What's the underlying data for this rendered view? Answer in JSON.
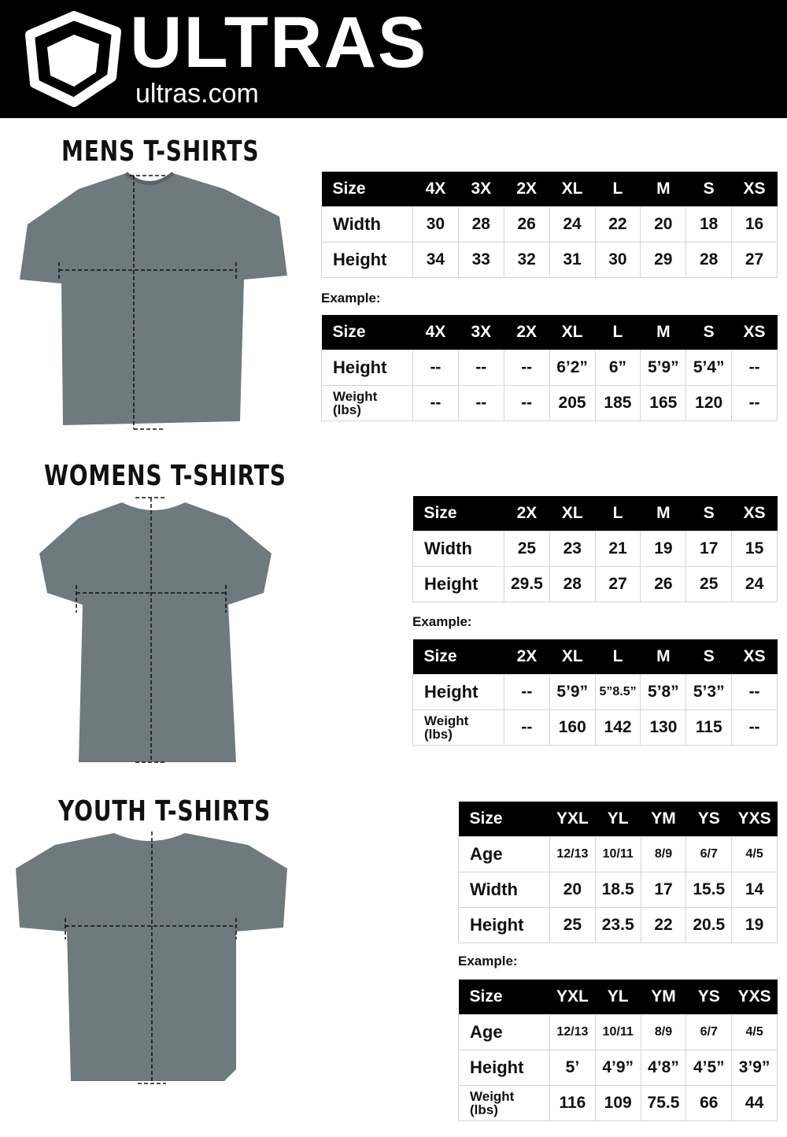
{
  "brand": {
    "name": "ULTRAS",
    "url": "ultras.com"
  },
  "example_label": "Example:",
  "sections": [
    {
      "title": "MENS T-SHIRTS",
      "measure": {
        "headers": [
          "Size",
          "4X",
          "3X",
          "2X",
          "XL",
          "L",
          "M",
          "S",
          "XS"
        ],
        "rows": [
          [
            "Width",
            "30",
            "28",
            "26",
            "24",
            "22",
            "20",
            "18",
            "16"
          ],
          [
            "Height",
            "34",
            "33",
            "32",
            "31",
            "30",
            "29",
            "28",
            "27"
          ]
        ]
      },
      "example": {
        "headers": [
          "Size",
          "4X",
          "3X",
          "2X",
          "XL",
          "L",
          "M",
          "S",
          "XS"
        ],
        "rows": [
          [
            "Height",
            "--",
            "--",
            "--",
            "6’2”",
            "6”",
            "5’9”",
            "5’4”",
            "--"
          ],
          [
            "Weight (lbs)",
            "--",
            "--",
            "--",
            "205",
            "185",
            "165",
            "120",
            "--"
          ]
        ]
      }
    },
    {
      "title": "WOMENS T-SHIRTS",
      "measure": {
        "headers": [
          "Size",
          "2X",
          "XL",
          "L",
          "M",
          "S",
          "XS"
        ],
        "rows": [
          [
            "Width",
            "25",
            "23",
            "21",
            "19",
            "17",
            "15"
          ],
          [
            "Height",
            "29.5",
            "28",
            "27",
            "26",
            "25",
            "24"
          ]
        ]
      },
      "example": {
        "headers": [
          "Size",
          "2X",
          "XL",
          "L",
          "M",
          "S",
          "XS"
        ],
        "rows": [
          [
            "Height",
            "--",
            "5’9”",
            "5”8.5”",
            "5’8”",
            "5’3”",
            "--"
          ],
          [
            "Weight (lbs)",
            "--",
            "160",
            "142",
            "130",
            "115",
            "--"
          ]
        ]
      }
    },
    {
      "title": "YOUTH T-SHIRTS",
      "measure": {
        "headers": [
          "Size",
          "YXL",
          "YL",
          "YM",
          "YS",
          "YXS"
        ],
        "rows": [
          [
            "Age",
            "12/13",
            "10/11",
            "8/9",
            "6/7",
            "4/5"
          ],
          [
            "Width",
            "20",
            "18.5",
            "17",
            "15.5",
            "14"
          ],
          [
            "Height",
            "25",
            "23.5",
            "22",
            "20.5",
            "19"
          ]
        ]
      },
      "example": {
        "headers": [
          "Size",
          "YXL",
          "YL",
          "YM",
          "YS",
          "YXS"
        ],
        "rows": [
          [
            "Age",
            "12/13",
            "10/11",
            "8/9",
            "6/7",
            "4/5"
          ],
          [
            "Height",
            "5’",
            "4’9”",
            "4’8”",
            "4’5”",
            "3’9”"
          ],
          [
            "Weight (lbs)",
            "116",
            "109",
            "75.5",
            "66",
            "44"
          ]
        ]
      }
    }
  ],
  "colors": {
    "header_bg": "#000000",
    "shirt": "#6f7a7e"
  }
}
